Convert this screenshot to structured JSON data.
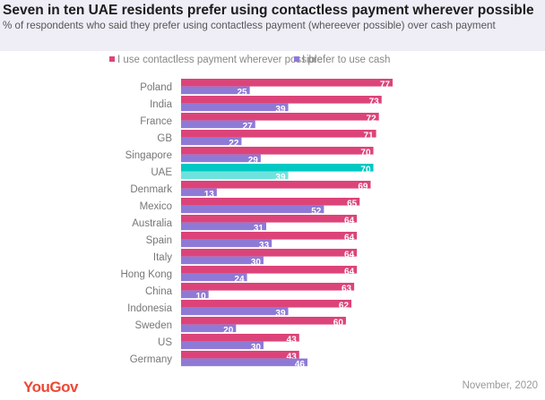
{
  "chart_data": {
    "type": "bar",
    "orientation": "horizontal",
    "title": "Seven in ten UAE residents prefer using contactless payment wherever possible",
    "subtitle": "% of respondents who said they prefer using contactless payment (whereever possible) over cash payment",
    "categories": [
      "Poland",
      "India",
      "France",
      "GB",
      "Singapore",
      "UAE",
      "Denmark",
      "Mexico",
      "Australia",
      "Spain",
      "Italy",
      "Hong Kong",
      "China",
      "Indonesia",
      "Sweden",
      "US",
      "Germany"
    ],
    "series": [
      {
        "name": "I use contactless payment wherever possible",
        "color": "#dc4479",
        "highlight_color": "#00c8c3",
        "values": [
          77,
          73,
          72,
          71,
          70,
          70,
          69,
          65,
          64,
          64,
          64,
          64,
          63,
          62,
          60,
          43,
          43
        ]
      },
      {
        "name": "I prefer to use cash",
        "color": "#8e7ad6",
        "highlight_color": "#6ee3de",
        "values": [
          25,
          39,
          27,
          22,
          29,
          39,
          13,
          52,
          31,
          33,
          30,
          24,
          10,
          39,
          20,
          30,
          46
        ]
      }
    ],
    "highlight_category": "UAE",
    "data_labels": true,
    "legend_position": "top",
    "grid": false,
    "xlim": [
      0,
      100
    ]
  },
  "footer": {
    "logo": "YouGov",
    "date": "November, 2020"
  }
}
